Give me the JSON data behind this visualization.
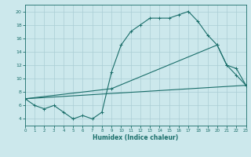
{
  "xlabel": "Humidex (Indice chaleur)",
  "xlim": [
    0,
    23
  ],
  "ylim": [
    3,
    21
  ],
  "yticks": [
    4,
    6,
    8,
    10,
    12,
    14,
    16,
    18,
    20
  ],
  "xticks": [
    0,
    1,
    2,
    3,
    4,
    5,
    6,
    7,
    8,
    9,
    10,
    11,
    12,
    13,
    14,
    15,
    16,
    17,
    18,
    19,
    20,
    21,
    22,
    23
  ],
  "bg_color": "#cce8ec",
  "grid_color": "#aacdd4",
  "line_color": "#1a6e6a",
  "line1_x": [
    0,
    1,
    2,
    3,
    4,
    5,
    6,
    7,
    8,
    9,
    10,
    11,
    12,
    13,
    14,
    15,
    16,
    17,
    18,
    19,
    20,
    21,
    22,
    23
  ],
  "line1_y": [
    7.0,
    6.0,
    5.5,
    6.0,
    5.0,
    4.0,
    4.5,
    4.0,
    5.0,
    11.0,
    15.0,
    17.0,
    18.0,
    19.0,
    19.0,
    19.0,
    19.5,
    20.0,
    18.5,
    16.5,
    15.0,
    12.0,
    10.5,
    9.0
  ],
  "line2_x": [
    0,
    9,
    20,
    21,
    22,
    23
  ],
  "line2_y": [
    7.0,
    8.5,
    15.0,
    12.0,
    11.5,
    9.0
  ],
  "line3_x": [
    0,
    23
  ],
  "line3_y": [
    7.0,
    9.0
  ]
}
